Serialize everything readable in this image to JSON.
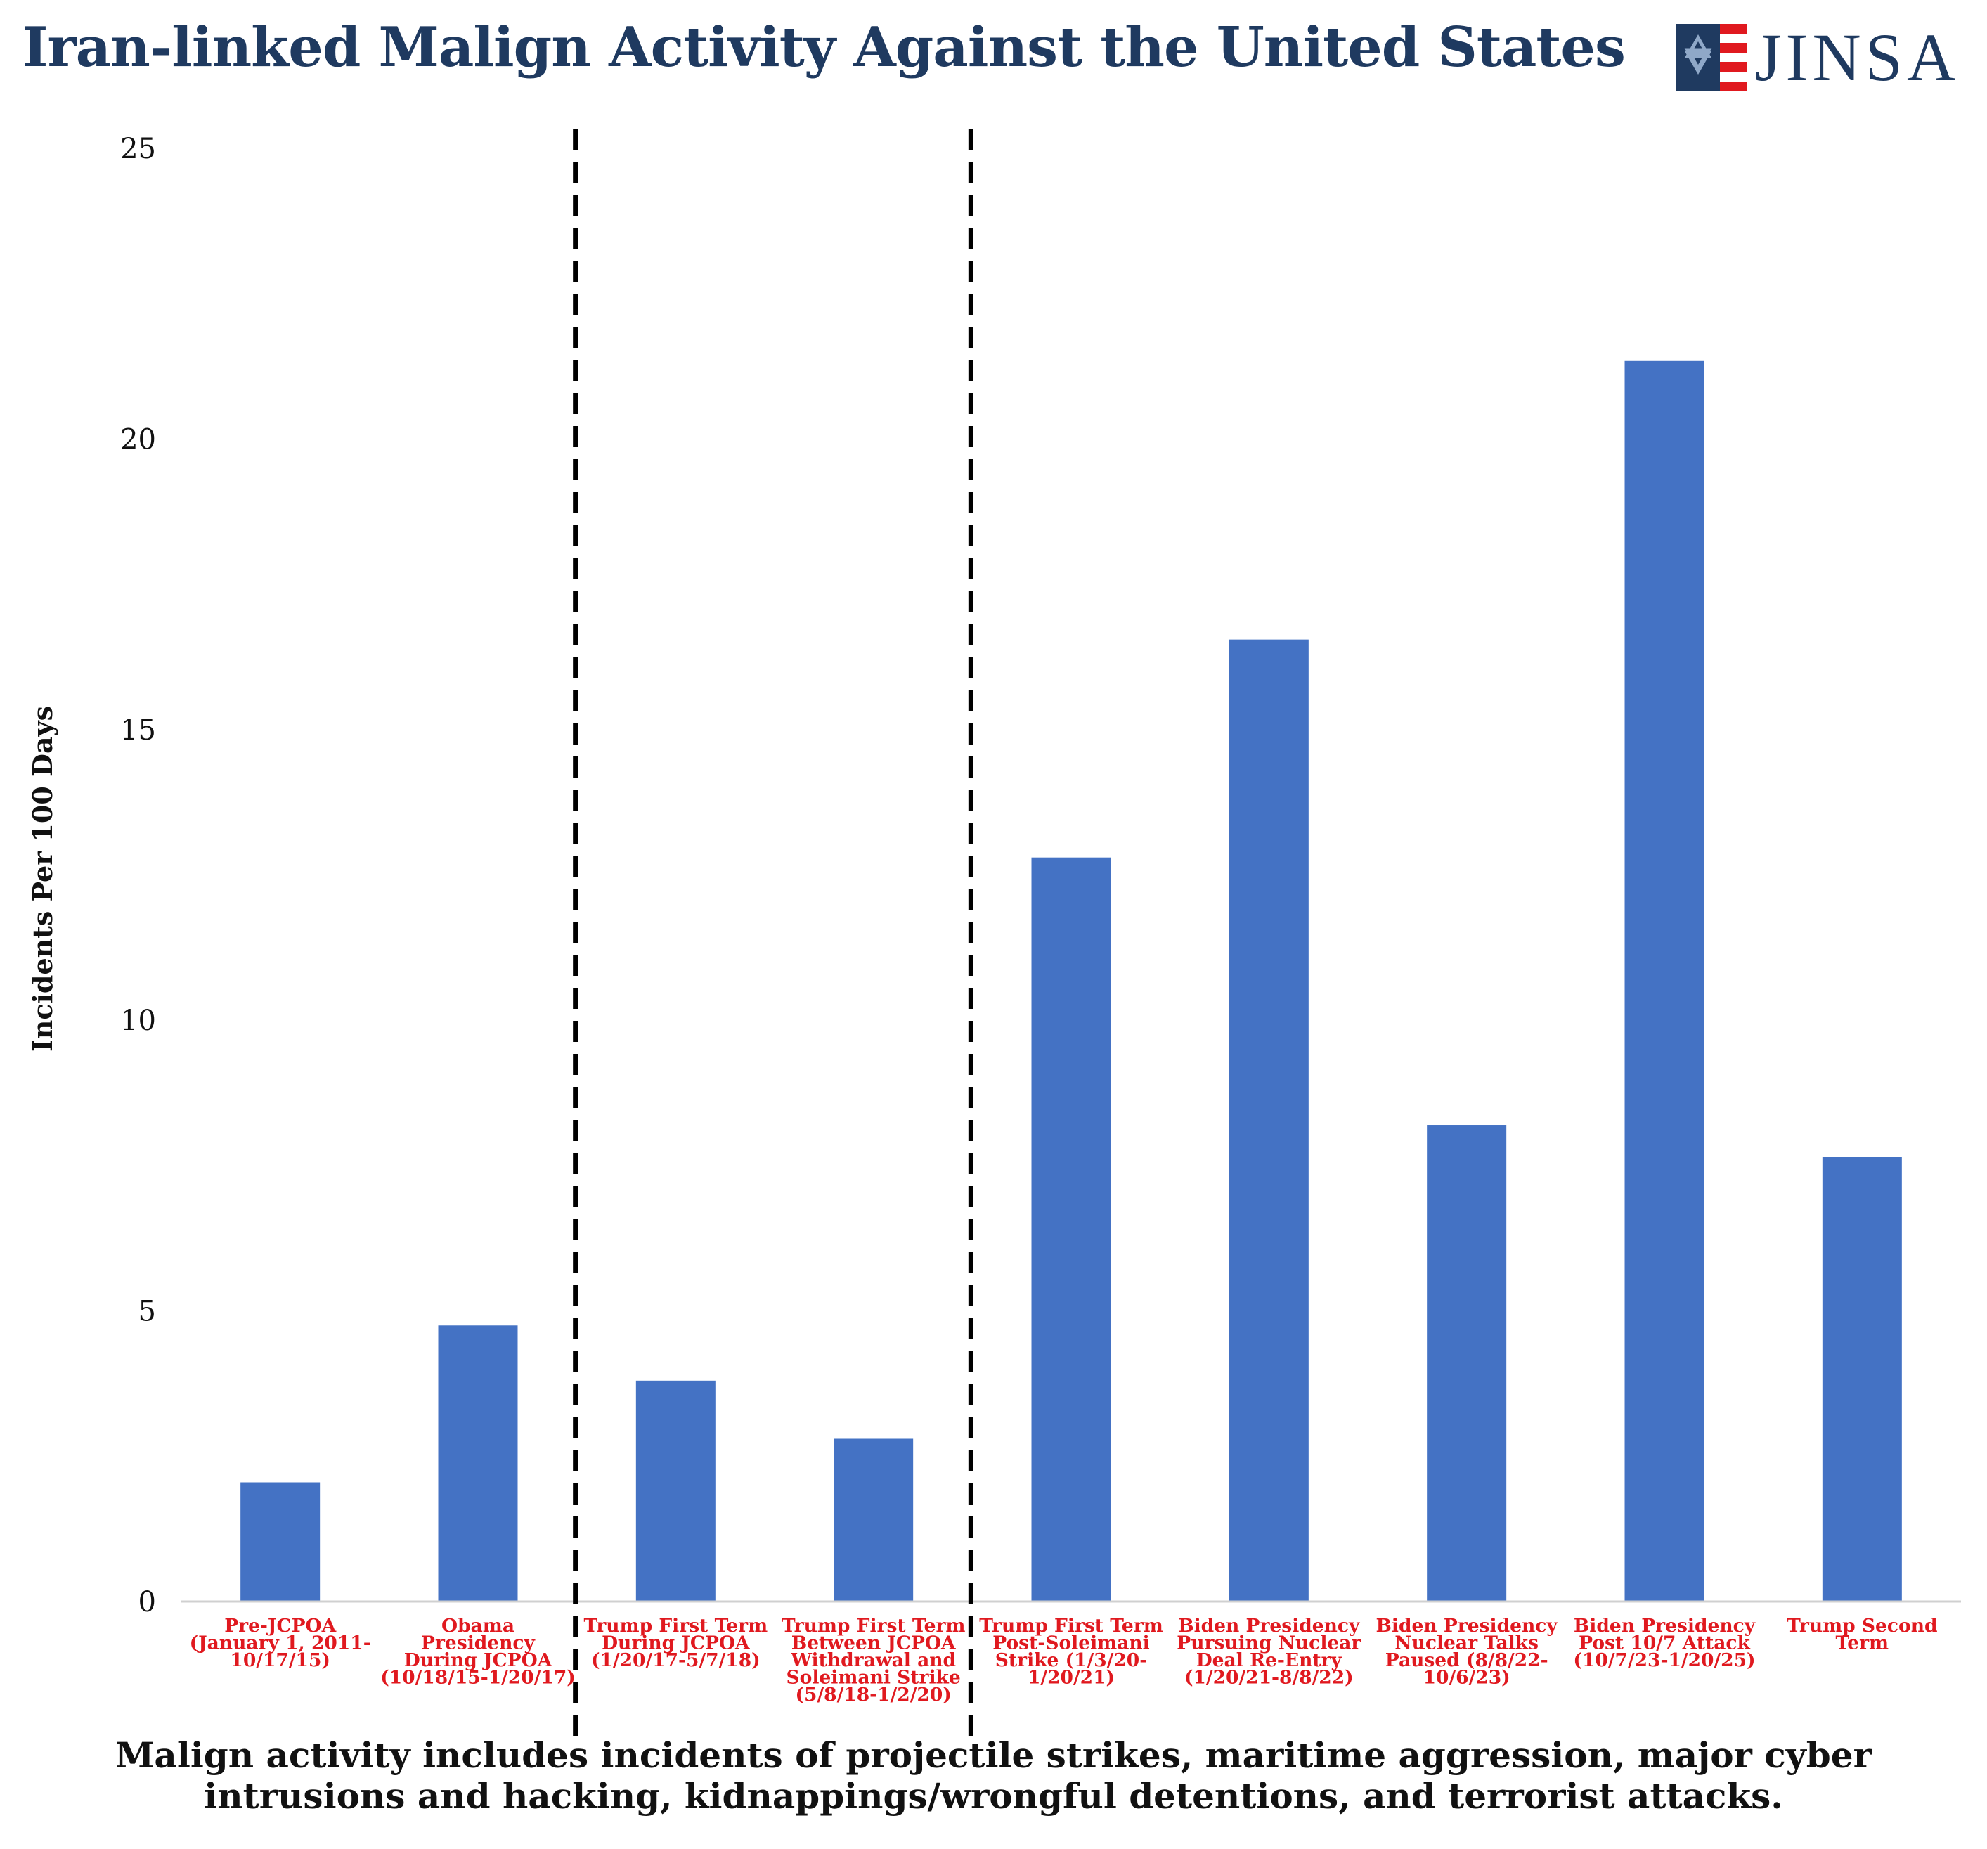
{
  "title": "Iran-linked Malign Activity Against the United States",
  "logo": {
    "text": "JINSA",
    "icon": "star-of-david-flag-icon",
    "colors": {
      "navy": "#1f3a60",
      "red": "#e0191f",
      "star": "#8fa8c8"
    }
  },
  "footnote": "Malign activity includes incidents of projectile strikes, maritime aggression, major cyber intrusions and hacking, kidnappings/wrongful detentions, and terrorist attacks.",
  "chart_data": {
    "type": "bar",
    "ylabel": "Incidents Per 100 Days",
    "xlabel": "",
    "ylim": [
      0,
      25
    ],
    "yticks": [
      0,
      5,
      10,
      15,
      20,
      25
    ],
    "grid": false,
    "bar_color": "#4472c4",
    "category_label_color": "#e0191f",
    "categories": [
      [
        "Pre-JCPOA",
        "(January 1, 2011-",
        "10/17/15)"
      ],
      [
        "Obama",
        "Presidency",
        "During JCPOA",
        "(10/18/15-1/20/17)"
      ],
      [
        "Trump First Term",
        "During JCPOA",
        "(1/20/17-5/7/18)"
      ],
      [
        "Trump First Term",
        "Between JCPOA",
        "Withdrawal and",
        "Soleimani Strike",
        "(5/8/18-1/2/20)"
      ],
      [
        "Trump First Term",
        "Post-Soleimani",
        "Strike (1/3/20-",
        "1/20/21)"
      ],
      [
        "Biden Presidency",
        "Pursuing Nuclear",
        "Deal Re-Entry",
        "(1/20/21-8/8/22)"
      ],
      [
        "Biden Presidency",
        "Nuclear Talks",
        "Paused (8/8/22-",
        "10/6/23)"
      ],
      [
        "Biden Presidency",
        "Post 10/7 Attack",
        "(10/7/23-1/20/25)"
      ],
      [
        "Trump Second",
        "Term"
      ]
    ],
    "values": [
      2.05,
      4.75,
      3.8,
      2.8,
      12.8,
      16.55,
      8.2,
      21.35,
      7.65
    ],
    "dividers_after_category": [
      1,
      3
    ],
    "divider_style": "dashed"
  }
}
